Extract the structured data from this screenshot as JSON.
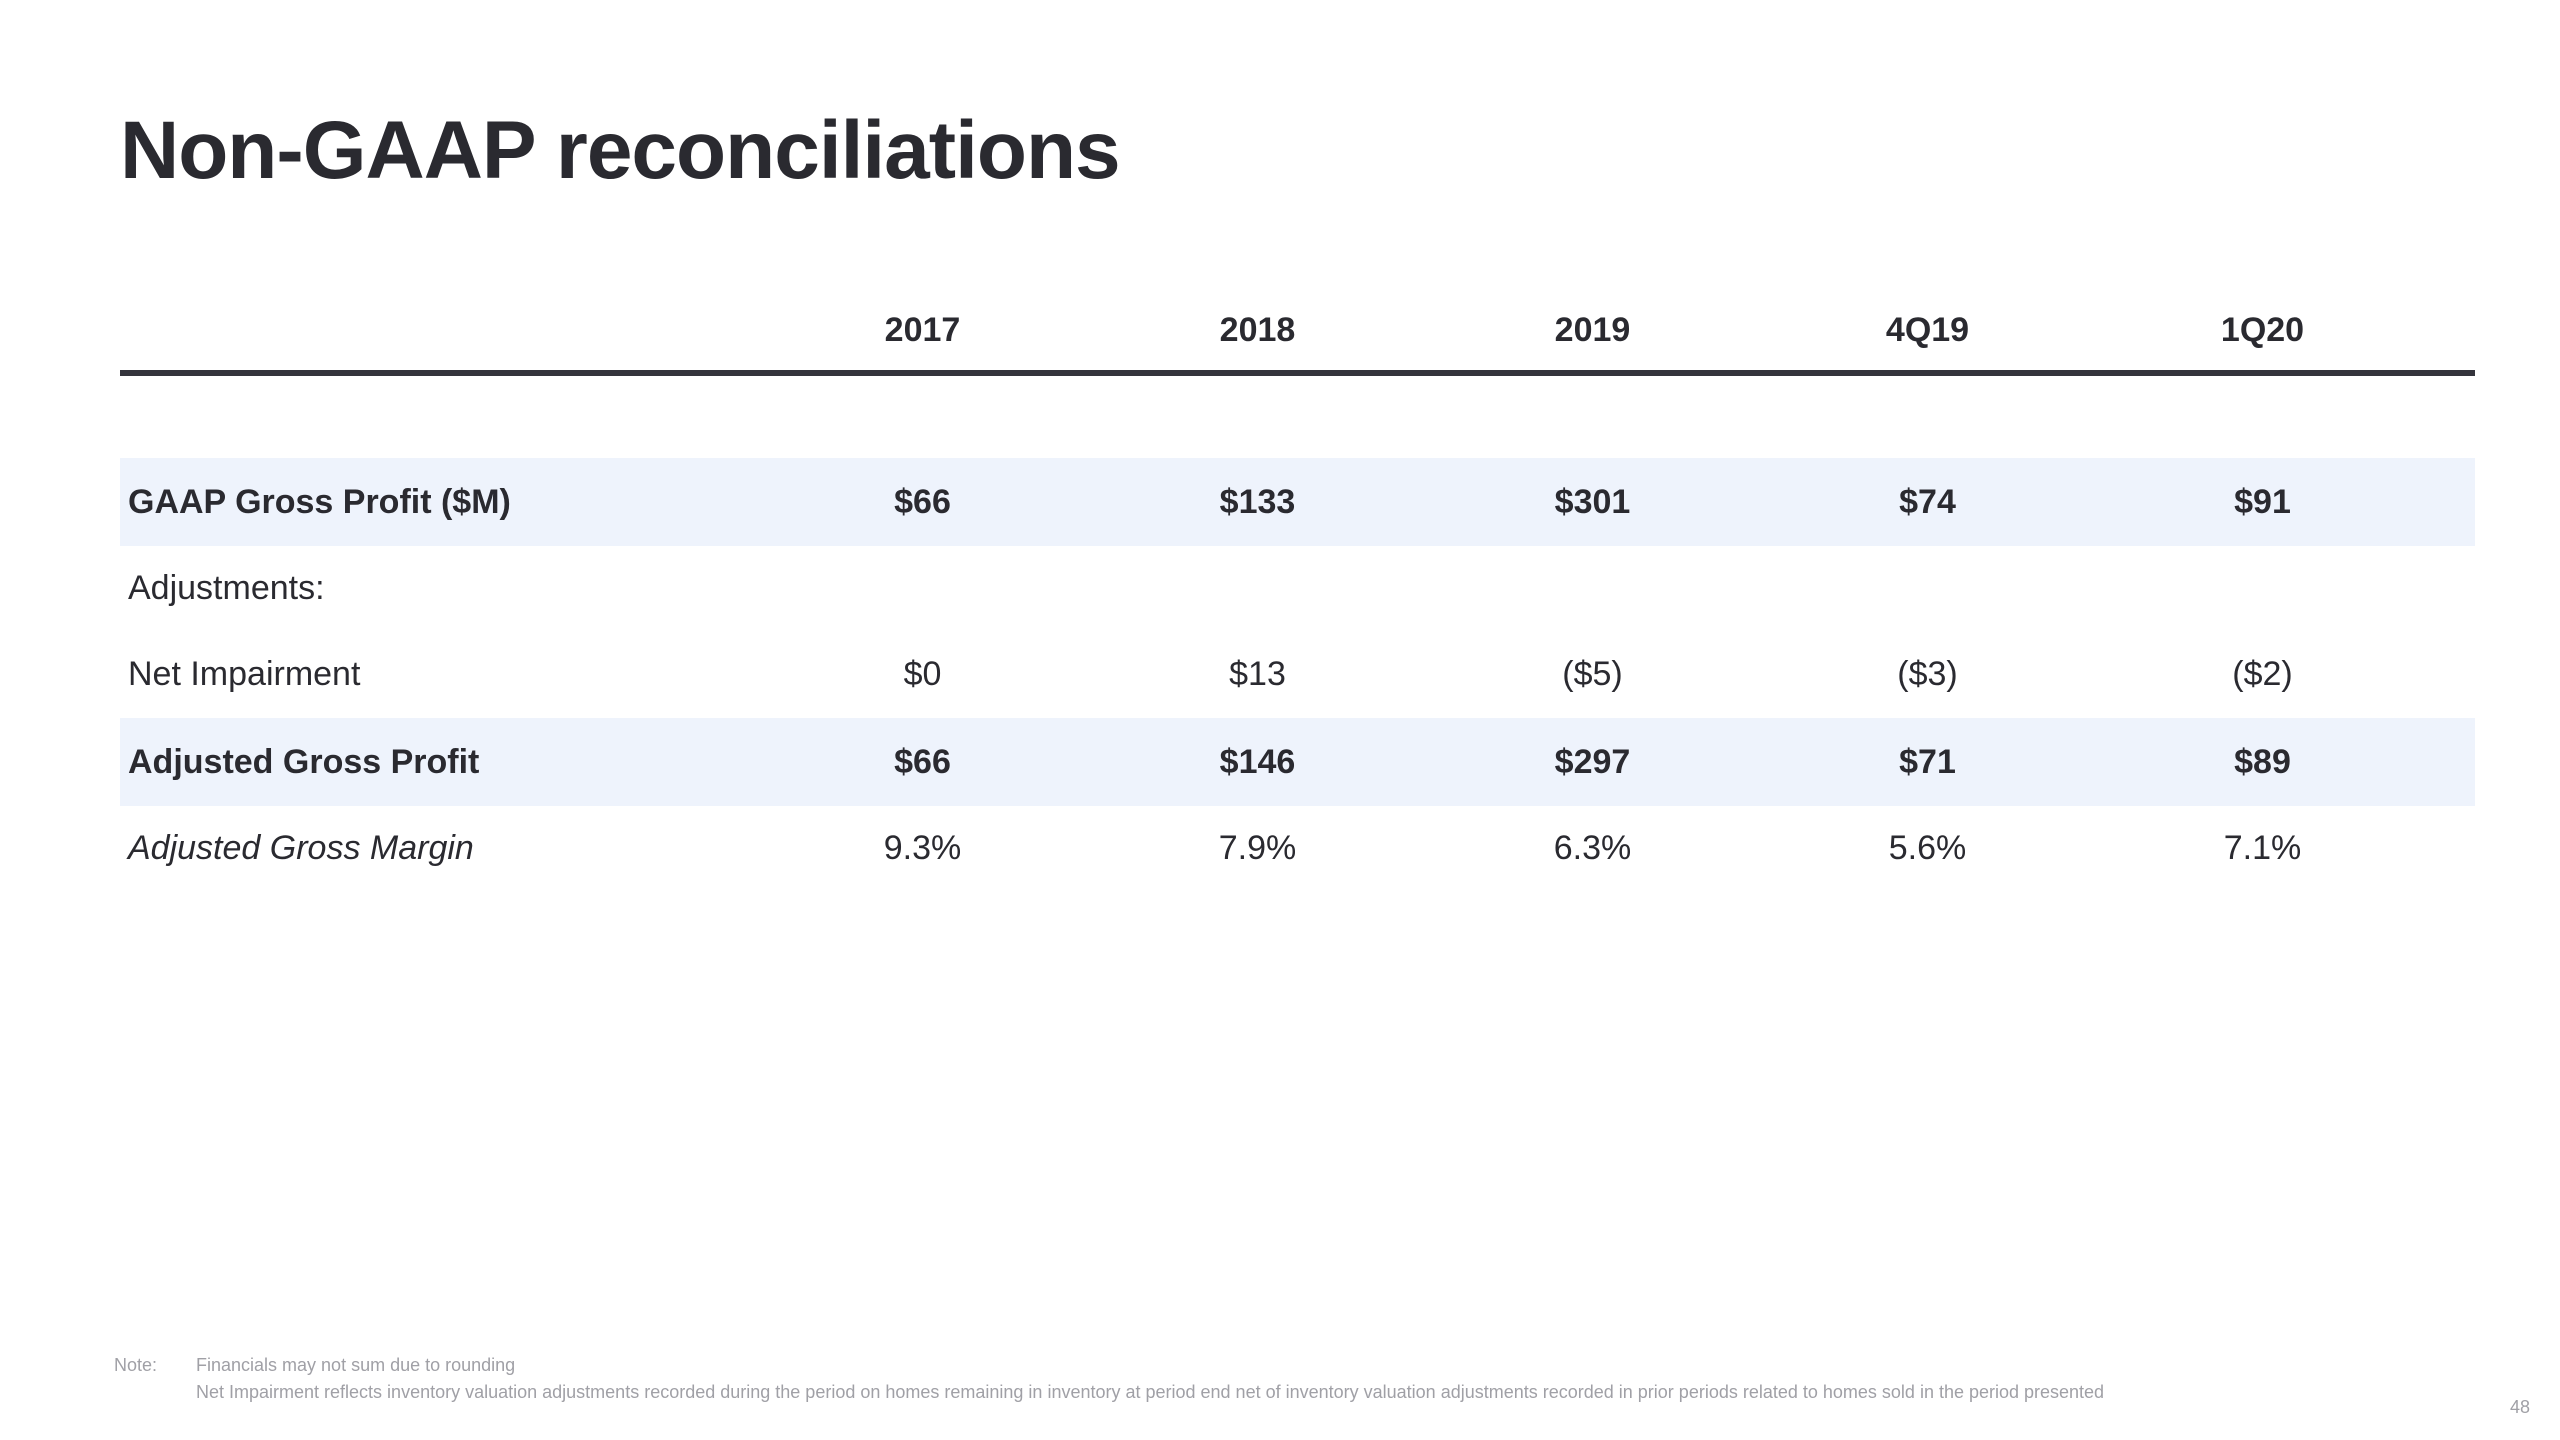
{
  "title": "Non-GAAP reconciliations",
  "columns": [
    "2017",
    "2018",
    "2019",
    "4Q19",
    "1Q20"
  ],
  "rows": {
    "gross_profit": {
      "label": "GAAP Gross Profit  ($M)",
      "values": [
        "$66",
        "$133",
        "$301",
        "$74",
        "$91"
      ]
    },
    "adjustments": {
      "label": "Adjustments:"
    },
    "net_impairment": {
      "label": "Net Impairment",
      "values": [
        "$0",
        "$13",
        "($5)",
        "($3)",
        "($2)"
      ]
    },
    "adjusted_gross_profit": {
      "label": "Adjusted Gross Profit",
      "values": [
        "$66",
        "$146",
        "$297",
        "$71",
        "$89"
      ]
    },
    "adjusted_gross_margin": {
      "label": "Adjusted Gross Margin",
      "values": [
        "9.3%",
        "7.9%",
        "6.3%",
        "5.6%",
        "7.1%"
      ]
    }
  },
  "footnote": {
    "label": "Note:",
    "lines": [
      "Financials may not sum due to rounding",
      "Net Impairment reflects inventory valuation adjustments recorded during the period on homes remaining in inventory at period end net of inventory valuation adjustments recorded in prior periods related to homes sold in the period presented"
    ]
  },
  "page_number": "48",
  "colors": {
    "highlight_row": "#eef3fc",
    "rule": "#34343c",
    "text": "#2a2a30",
    "footnote": "#a0a0a6"
  }
}
